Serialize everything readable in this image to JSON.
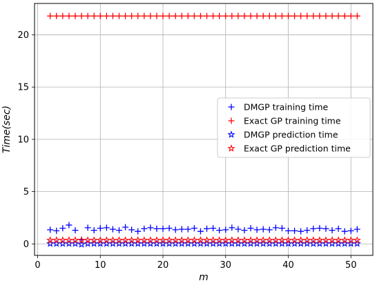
{
  "chart_data": {
    "type": "scatter",
    "title": "",
    "xlabel": "m",
    "ylabel": "Time(sec)",
    "xlim": [
      -0.5,
      53.5
    ],
    "ylim": [
      -1.1,
      23.0
    ],
    "xticks": [
      0,
      10,
      20,
      30,
      40,
      50
    ],
    "yticks": [
      0,
      5,
      10,
      15,
      20
    ],
    "grid": true,
    "legend_position": "center-right",
    "x": [
      2,
      3,
      4,
      5,
      6,
      7,
      8,
      9,
      10,
      11,
      12,
      13,
      14,
      15,
      16,
      17,
      18,
      19,
      20,
      21,
      22,
      23,
      24,
      25,
      26,
      27,
      28,
      29,
      30,
      31,
      32,
      33,
      34,
      35,
      36,
      37,
      38,
      39,
      40,
      41,
      42,
      43,
      44,
      45,
      46,
      47,
      48,
      49,
      50,
      51
    ],
    "series": [
      {
        "name": "DMGP training time",
        "marker": "plus",
        "color": "#0000ff",
        "values": [
          1.35,
          1.25,
          1.5,
          1.8,
          1.3,
          0.4,
          1.55,
          1.3,
          1.5,
          1.55,
          1.4,
          1.3,
          1.6,
          1.35,
          1.2,
          1.45,
          1.55,
          1.45,
          1.45,
          1.5,
          1.35,
          1.4,
          1.4,
          1.5,
          1.2,
          1.45,
          1.5,
          1.3,
          1.35,
          1.55,
          1.4,
          1.3,
          1.5,
          1.35,
          1.4,
          1.35,
          1.55,
          1.5,
          1.25,
          1.25,
          1.2,
          1.3,
          1.45,
          1.5,
          1.45,
          1.3,
          1.45,
          1.2,
          1.25,
          1.4
        ]
      },
      {
        "name": "Exact GP training time",
        "marker": "plus",
        "color": "#ff0000",
        "values": [
          21.8,
          21.8,
          21.8,
          21.8,
          21.8,
          21.8,
          21.8,
          21.8,
          21.8,
          21.8,
          21.8,
          21.8,
          21.8,
          21.8,
          21.8,
          21.8,
          21.8,
          21.8,
          21.8,
          21.8,
          21.8,
          21.8,
          21.8,
          21.8,
          21.8,
          21.8,
          21.8,
          21.8,
          21.8,
          21.8,
          21.8,
          21.8,
          21.8,
          21.8,
          21.8,
          21.8,
          21.8,
          21.8,
          21.8,
          21.8,
          21.8,
          21.8,
          21.8,
          21.8,
          21.8,
          21.8,
          21.8,
          21.8,
          21.8,
          21.8
        ]
      },
      {
        "name": "DMGP prediction time",
        "marker": "star",
        "color": "#0000ff",
        "values": [
          0.02,
          0.02,
          0.02,
          0.02,
          0.02,
          -0.05,
          0.02,
          0.02,
          0.02,
          0.02,
          0.02,
          0.02,
          0.02,
          0.02,
          0.02,
          0.02,
          0.02,
          0.02,
          0.02,
          0.02,
          0.02,
          0.02,
          0.02,
          0.02,
          0.02,
          0.02,
          0.02,
          0.02,
          0.02,
          0.02,
          0.02,
          0.02,
          0.02,
          0.02,
          0.02,
          0.02,
          0.02,
          0.02,
          0.02,
          0.02,
          0.02,
          0.02,
          0.02,
          0.02,
          0.02,
          0.02,
          0.02,
          0.02,
          0.02,
          0.02
        ]
      },
      {
        "name": "Exact GP prediction time",
        "marker": "star",
        "color": "#ff0000",
        "values": [
          0.35,
          0.35,
          0.35,
          0.35,
          0.35,
          0.35,
          0.35,
          0.35,
          0.35,
          0.35,
          0.35,
          0.35,
          0.35,
          0.35,
          0.35,
          0.35,
          0.35,
          0.35,
          0.35,
          0.35,
          0.35,
          0.35,
          0.35,
          0.35,
          0.35,
          0.35,
          0.35,
          0.35,
          0.35,
          0.35,
          0.35,
          0.35,
          0.35,
          0.35,
          0.35,
          0.35,
          0.35,
          0.35,
          0.35,
          0.35,
          0.35,
          0.35,
          0.35,
          0.35,
          0.35,
          0.35,
          0.35,
          0.35,
          0.35,
          0.35
        ]
      }
    ]
  }
}
